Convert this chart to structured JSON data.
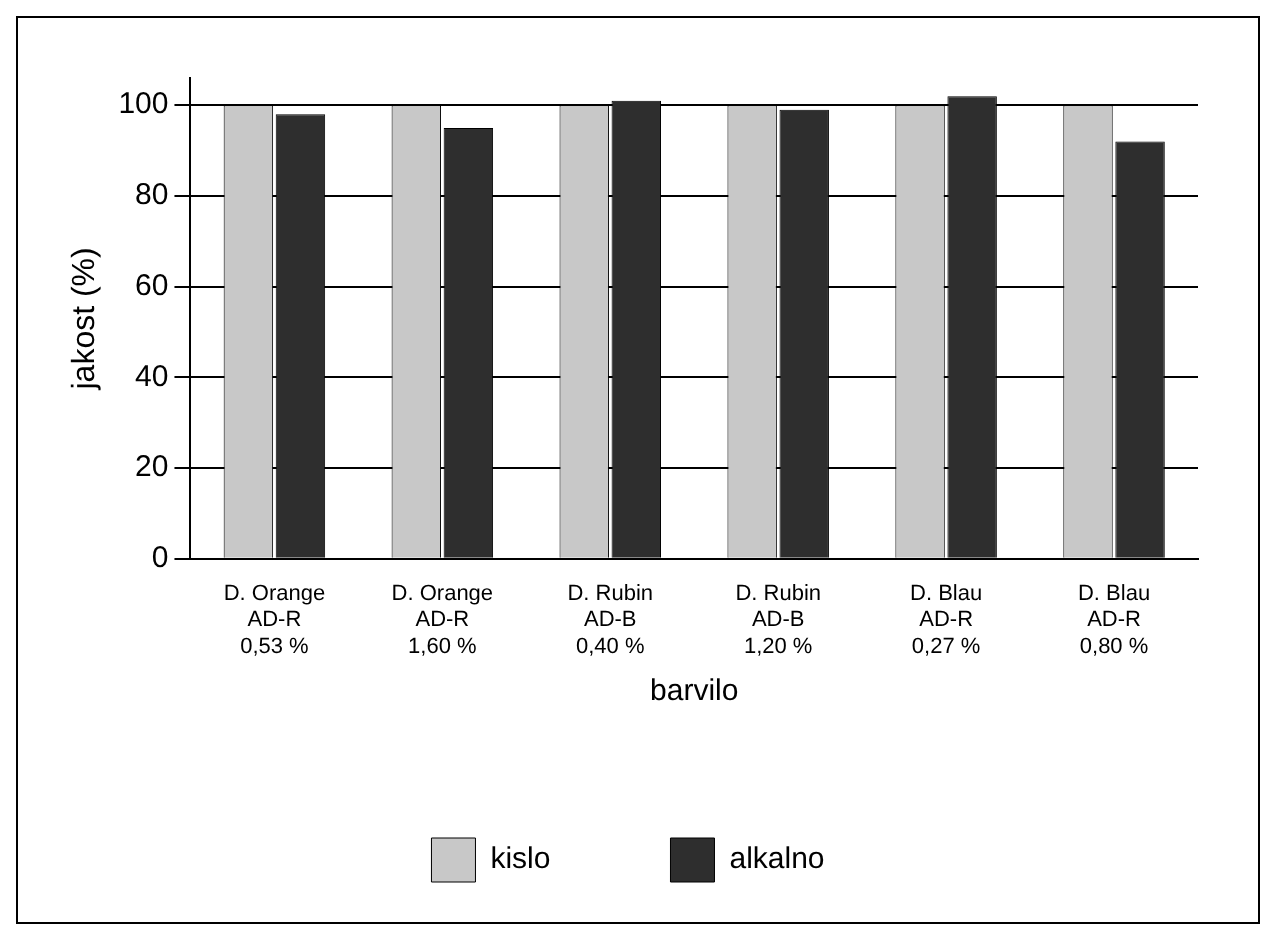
{
  "chart_data": {
    "type": "bar",
    "xlabel": "barvilo",
    "ylabel": "jakost (%)",
    "categories": [
      "D. Orange\nAD-R\n0,53 %",
      "D. Orange\nAD-R\n1,60 %",
      "D. Rubin\nAD-B\n0,40 %",
      "D. Rubin\nAD-B\n1,20 %",
      "D. Blau\nAD-R\n0,27 %",
      "D. Blau\nAD-R\n0,80 %"
    ],
    "series": [
      {
        "name": "kislo",
        "color": "#c8c8c8",
        "values": [
          100,
          100,
          100,
          100,
          100,
          100
        ]
      },
      {
        "name": "alkalno",
        "color": "#2e2e2e",
        "values": [
          98,
          95,
          101,
          99,
          102,
          92
        ]
      }
    ],
    "ylim": [
      0,
      106
    ],
    "yticks": [
      0,
      20,
      40,
      60,
      80,
      100
    ],
    "grid": "y",
    "legend": "bottom"
  }
}
